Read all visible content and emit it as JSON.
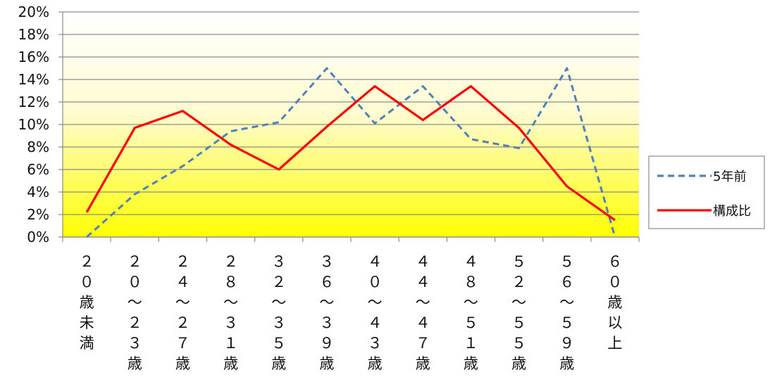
{
  "chart_data": {
    "type": "line",
    "categories": [
      "20歳未満",
      "20～23歳",
      "24～27歳",
      "28～31歳",
      "32～35歳",
      "36～39歳",
      "40～43歳",
      "44～47歳",
      "48～51歳",
      "52～55歳",
      "56～59歳",
      "60歳以上"
    ],
    "category_labels": [
      [
        "２",
        "０",
        "歳",
        "未",
        "満"
      ],
      [
        "２",
        "０",
        "～",
        "２",
        "３",
        "歳"
      ],
      [
        "２",
        "４",
        "～",
        "２",
        "７",
        "歳"
      ],
      [
        "２",
        "８",
        "～",
        "３",
        "１",
        "歳"
      ],
      [
        "３",
        "２",
        "～",
        "３",
        "５",
        "歳"
      ],
      [
        "３",
        "６",
        "～",
        "３",
        "９",
        "歳"
      ],
      [
        "４",
        "０",
        "～",
        "４",
        "３",
        "歳"
      ],
      [
        "４",
        "４",
        "～",
        "４",
        "７",
        "歳"
      ],
      [
        "４",
        "８",
        "～",
        "５",
        "１",
        "歳"
      ],
      [
        "５",
        "２",
        "～",
        "５",
        "５",
        "歳"
      ],
      [
        "５",
        "６",
        "～",
        "５",
        "９",
        "歳"
      ],
      [
        "６",
        "０",
        "歳",
        "以",
        "上"
      ]
    ],
    "series": [
      {
        "name": "5年前",
        "style": "dashed",
        "color": "#4f81bd",
        "values": [
          0.0,
          3.8,
          6.3,
          9.4,
          10.2,
          15.0,
          10.1,
          13.4,
          8.7,
          7.9,
          15.0,
          0.0
        ]
      },
      {
        "name": "構成比",
        "style": "solid",
        "color": "#ff0000",
        "values": [
          2.2,
          9.7,
          11.2,
          8.2,
          6.0,
          9.8,
          13.4,
          10.4,
          13.4,
          9.7,
          4.5,
          1.5
        ]
      }
    ],
    "ylim": [
      0,
      20
    ],
    "yticks": [
      "0%",
      "2%",
      "4%",
      "6%",
      "8%",
      "10%",
      "12%",
      "14%",
      "16%",
      "18%",
      "20%"
    ],
    "grid": true,
    "legend_position": "right",
    "plot_background": "gradient light-yellow to yellow",
    "title": "",
    "xlabel": "",
    "ylabel": ""
  }
}
